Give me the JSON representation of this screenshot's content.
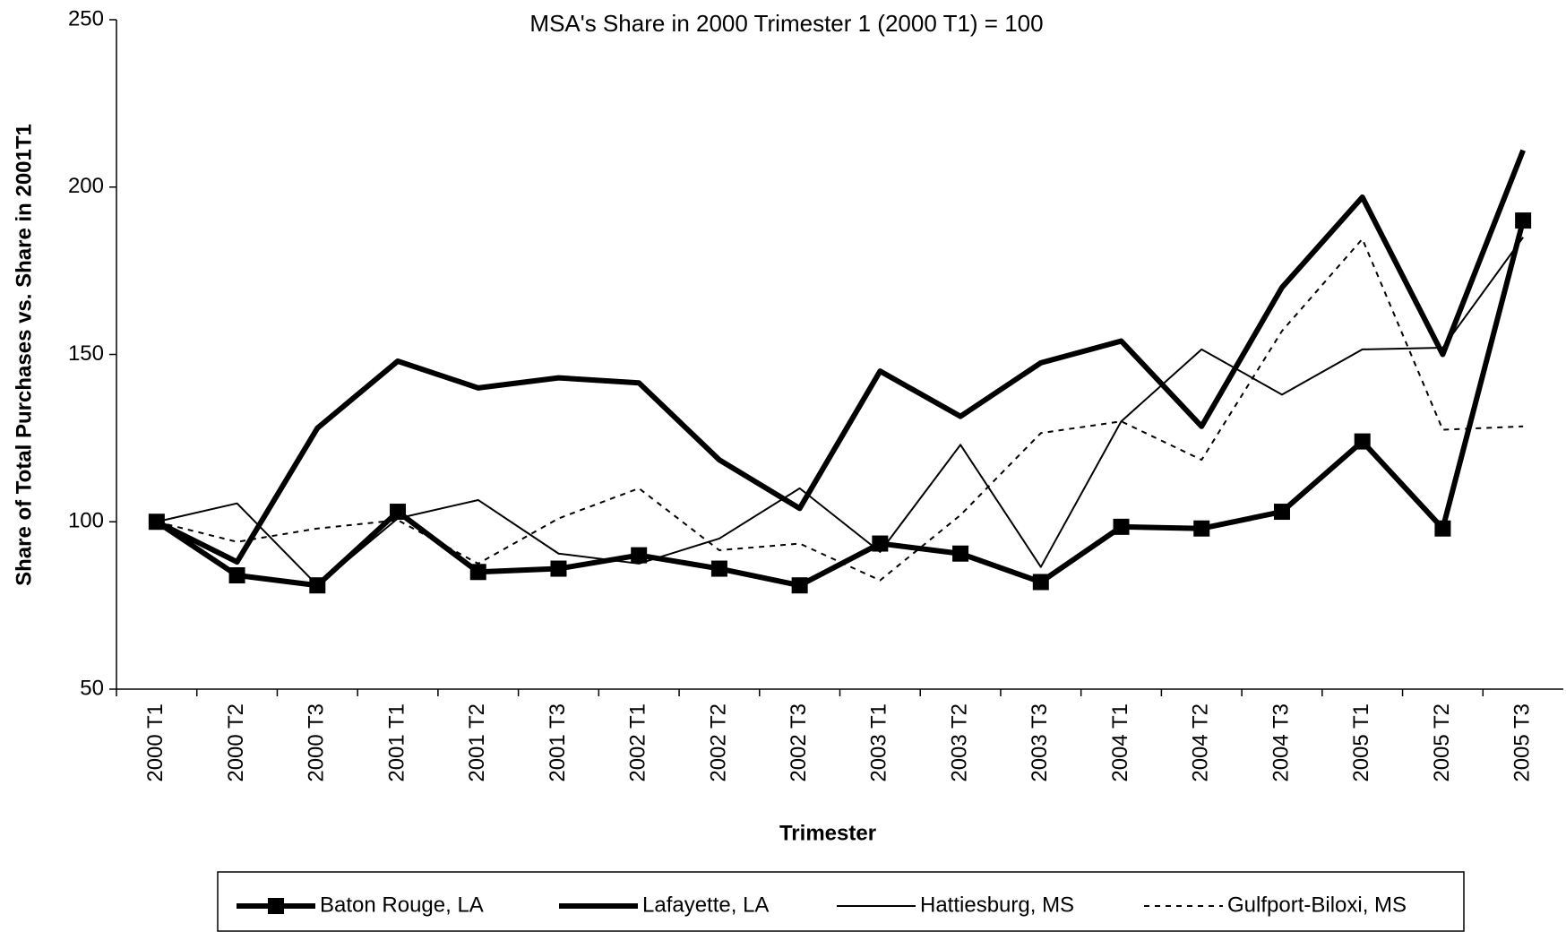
{
  "chart_data": {
    "type": "line",
    "title": "MSA's Share in 2000 Trimester 1 (2000 T1) = 100",
    "x_label": "Trimester",
    "y_label": "Share of Total Purchases vs. Share in 2001T1",
    "categories": [
      "2000 T1",
      "2000 T2",
      "2000 T3",
      "2001 T1",
      "2001 T2",
      "2001 T3",
      "2002 T1",
      "2002 T2",
      "2002 T3",
      "2003 T1",
      "2003 T2",
      "2003 T3",
      "2004 T1",
      "2004 T2",
      "2004 T3",
      "2005 T1",
      "2005 T2",
      "2005 T3"
    ],
    "series": [
      {
        "name": "Baton Rouge, LA",
        "color": "#000000",
        "line": "thick",
        "marker": "square",
        "values": [
          100,
          84,
          81,
          103,
          85,
          86,
          90,
          86,
          81,
          93.5,
          90.5,
          82,
          98.5,
          98,
          103,
          124,
          98,
          190
        ]
      },
      {
        "name": "Lafayette, LA",
        "color": "#000000",
        "line": "thick",
        "values": [
          100,
          88,
          128,
          148,
          140,
          143,
          141.5,
          118.5,
          104,
          145,
          131.5,
          147.5,
          154,
          128.5,
          170,
          197,
          150,
          211
        ]
      },
      {
        "name": "Hattiesburg, MS",
        "color": "#000000",
        "line": "thin",
        "values": [
          100,
          105.5,
          81,
          101,
          106.5,
          90.5,
          87.5,
          95,
          110,
          91,
          123,
          86.5,
          130,
          151.5,
          138,
          151.5,
          152,
          185
        ]
      },
      {
        "name": "Gulfport-Biloxi, MS",
        "color": "#000000",
        "line": "dotted",
        "values": [
          100,
          94,
          98,
          100.5,
          87.5,
          101,
          110,
          91.5,
          93.5,
          82.5,
          102,
          126.5,
          130,
          118.5,
          157,
          184.5,
          127.5,
          128.5
        ]
      }
    ],
    "ylim": [
      50,
      250
    ],
    "yticks": [
      50,
      100,
      150,
      200,
      250
    ],
    "grid": false,
    "legend": "bottom"
  }
}
